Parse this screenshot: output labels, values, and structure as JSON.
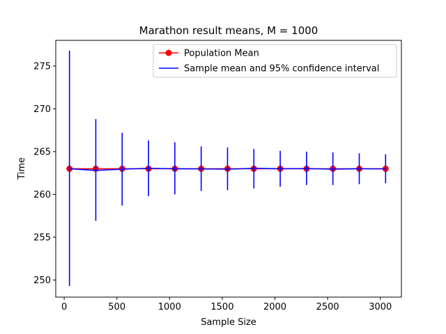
{
  "chart_data": {
    "type": "line",
    "title": "Marathon result means, M = 1000",
    "xlabel": "Sample Size",
    "ylabel": "Time",
    "xlim": [
      -80,
      3200
    ],
    "ylim": [
      248,
      278
    ],
    "xticks": [
      0,
      500,
      1000,
      1500,
      2000,
      2500,
      3000
    ],
    "yticks": [
      250,
      255,
      260,
      265,
      270,
      275
    ],
    "legend_position": "top-right",
    "grid": false,
    "x": [
      50,
      300,
      550,
      800,
      1050,
      1300,
      1550,
      1800,
      2050,
      2300,
      2550,
      2800,
      3050
    ],
    "series": [
      {
        "name": "Population Mean",
        "color": "#ff0000",
        "marker": "circle",
        "values": [
          263.0,
          263.0,
          263.0,
          263.0,
          263.0,
          263.0,
          263.0,
          263.0,
          263.0,
          263.0,
          263.0,
          263.0,
          263.0
        ]
      },
      {
        "name": "Sample mean and 95% confidence interval",
        "color": "#0000ff",
        "values": [
          263.0,
          262.8,
          262.95,
          263.05,
          263.0,
          262.98,
          262.95,
          263.05,
          263.0,
          263.02,
          262.95,
          263.0,
          262.98
        ],
        "ci_low": [
          249.3,
          256.9,
          258.7,
          259.8,
          260.0,
          260.4,
          260.5,
          260.7,
          260.9,
          261.1,
          261.1,
          261.2,
          261.3
        ],
        "ci_high": [
          276.8,
          268.8,
          267.2,
          266.3,
          266.1,
          265.6,
          265.5,
          265.3,
          265.1,
          265.0,
          264.9,
          264.8,
          264.7
        ]
      }
    ]
  }
}
